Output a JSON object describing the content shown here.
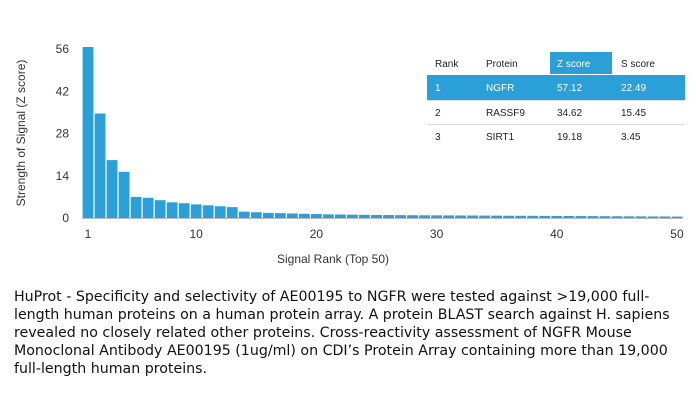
{
  "chart_data": {
    "type": "bar",
    "title": "",
    "xlabel": "Signal Rank (Top 50)",
    "ylabel": "Strength of Signal (Z score)",
    "xlim": [
      1,
      50
    ],
    "ylim": [
      0,
      56
    ],
    "xticks": [
      1,
      10,
      20,
      30,
      40,
      50
    ],
    "yticks": [
      0,
      14,
      28,
      42,
      56
    ],
    "x": [
      1,
      2,
      3,
      4,
      5,
      6,
      7,
      8,
      9,
      10,
      11,
      12,
      13,
      14,
      15,
      16,
      17,
      18,
      19,
      20,
      21,
      22,
      23,
      24,
      25,
      26,
      27,
      28,
      29,
      30,
      31,
      32,
      33,
      34,
      35,
      36,
      37,
      38,
      39,
      40,
      41,
      42,
      43,
      44,
      45,
      46,
      47,
      48,
      49,
      50
    ],
    "values": [
      57.12,
      34.62,
      19.18,
      15.3,
      7.0,
      6.7,
      5.9,
      5.2,
      4.9,
      4.5,
      4.2,
      3.9,
      3.6,
      2.1,
      1.9,
      1.7,
      1.6,
      1.5,
      1.4,
      1.3,
      1.2,
      1.15,
      1.1,
      1.05,
      1.0,
      0.98,
      0.95,
      0.92,
      0.9,
      0.88,
      0.86,
      0.84,
      0.82,
      0.8,
      0.78,
      0.76,
      0.74,
      0.72,
      0.7,
      0.68,
      0.66,
      0.64,
      0.62,
      0.6,
      0.58,
      0.56,
      0.54,
      0.52,
      0.5,
      0.48
    ],
    "bar_color": "#2a9fd8",
    "grid": false
  },
  "table": {
    "headers": [
      "Rank",
      "Protein",
      "Z score",
      "S score"
    ],
    "rows": [
      [
        "1",
        "NGFR",
        "57.12",
        "22.49"
      ],
      [
        "2",
        "RASSF9",
        "34.62",
        "15.45"
      ],
      [
        "3",
        "SIRT1",
        "19.18",
        "3.45"
      ]
    ],
    "highlight_color": "#2a9fd8"
  },
  "caption": "HuProt  -  Specificity and selectivity of AE00195 to NGFR were tested against >19,000 full-length human proteins on a human protein array. A protein BLAST search against H. sapiens revealed no closely related other proteins. Cross-reactivity assessment of NGFR Mouse Monoclonal Antibody AE00195 (1ug/ml) on CDI’s Protein Array containing more than 19,000 full-length human proteins."
}
